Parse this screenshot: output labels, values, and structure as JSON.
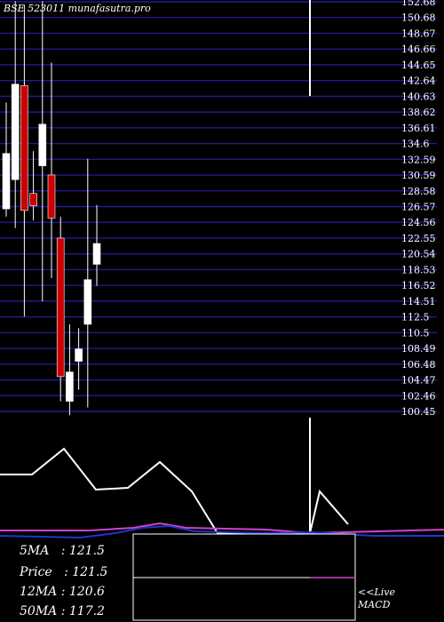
{
  "chart_data": {
    "type": "candlestick",
    "title": "BSE 523011 munafasutra.pro",
    "ylim": [
      99.45,
      152.68
    ],
    "y_ticks": [
      "152.68",
      "150.68",
      "148.67",
      "146.66",
      "144.65",
      "142.64",
      "140.63",
      "138.62",
      "136.61",
      "134.6",
      "132.59",
      "130.59",
      "128.58",
      "126.57",
      "124.56",
      "122.55",
      "120.54",
      "118.53",
      "116.52",
      "114.51",
      "112.5",
      "110.5",
      "108.49",
      "106.48",
      "104.47",
      "102.46",
      "100.45"
    ],
    "candles": [
      {
        "open": 126.0,
        "close": 133.2,
        "high": 139.8,
        "low": 125.0
      },
      {
        "open": 129.8,
        "close": 142.2,
        "high": 153.0,
        "low": 123.5
      },
      {
        "open": 142.0,
        "close": 125.8,
        "high": 152.5,
        "low": 112.0
      },
      {
        "open": 128.0,
        "close": 126.4,
        "high": 133.5,
        "low": 124.5
      },
      {
        "open": 131.6,
        "close": 137.0,
        "high": 153.0,
        "low": 114.0
      },
      {
        "open": 130.4,
        "close": 124.8,
        "high": 145.0,
        "low": 117.0
      },
      {
        "open": 122.2,
        "close": 104.2,
        "high": 125.0,
        "low": 101.0
      },
      {
        "open": 101.0,
        "close": 104.8,
        "high": 111.0,
        "low": 99.2
      },
      {
        "open": 106.2,
        "close": 107.8,
        "high": 110.5,
        "low": 102.5
      },
      {
        "open": 111.0,
        "close": 116.8,
        "high": 132.5,
        "low": 100.2
      },
      {
        "open": 118.8,
        "close": 121.5,
        "high": 126.5,
        "low": 116.0
      }
    ],
    "ma_line": [
      534,
      534,
      505,
      551,
      549,
      520,
      553,
      600,
      600,
      600,
      600,
      600,
      553,
      590
    ],
    "macd_lines": [],
    "legend": {
      "ma5": "5MA   : 121.5",
      "price": "Price   : 121.5",
      "ma12": "12MA : 120.6",
      "ma50": "50MA : 117.2"
    },
    "live_label": "<<Live",
    "macd_label": "MACD"
  },
  "colors": {
    "background": "#000000",
    "grid": "#1c1c8f",
    "bull": "#ffffff",
    "bear": "#cc0000",
    "macd": "#cc44cc",
    "signal": "#2233cc"
  }
}
